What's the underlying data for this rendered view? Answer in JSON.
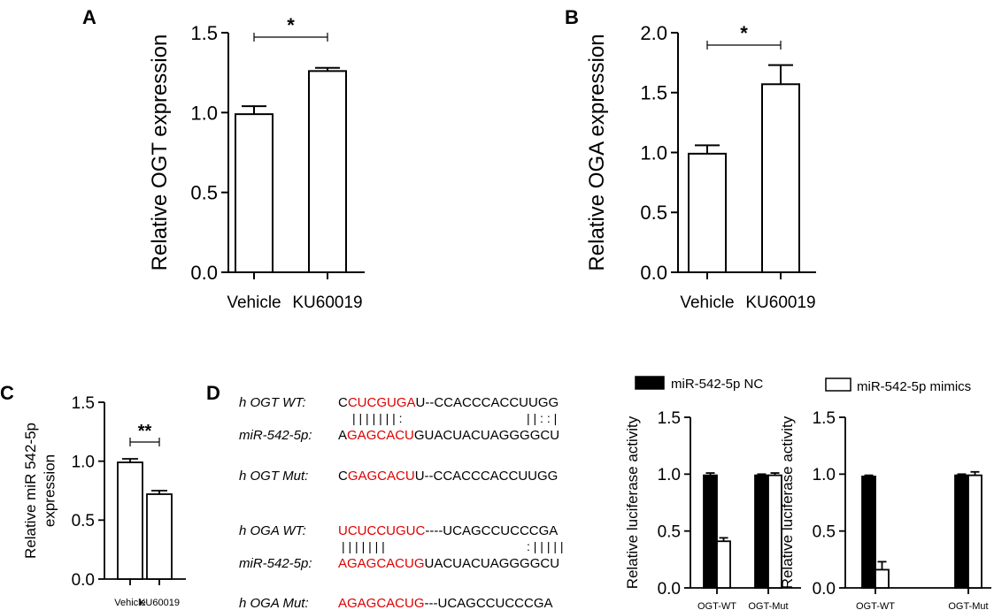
{
  "panels": {
    "a": {
      "letter": "A"
    },
    "b": {
      "letter": "B"
    },
    "c": {
      "letter": "C"
    },
    "d": {
      "letter": "D"
    }
  },
  "chart_data": [
    {
      "id": "A",
      "type": "bar",
      "categories": [
        "Vehicle",
        "KU60019"
      ],
      "values": [
        0.99,
        1.26
      ],
      "errors": [
        0.05,
        0.02
      ],
      "ylabel": "Relative OGT expression",
      "ylim": [
        0,
        1.5
      ],
      "yticks": [
        "0.0",
        "0.5",
        "1.0",
        "1.5"
      ],
      "significance": "*",
      "bar_fill": "#ffffff",
      "bar_stroke": "#000000"
    },
    {
      "id": "B",
      "type": "bar",
      "categories": [
        "Vehicle",
        "KU60019"
      ],
      "values": [
        0.99,
        1.57
      ],
      "errors": [
        0.07,
        0.16
      ],
      "ylabel": "Relative OGA expression",
      "ylim": [
        0,
        2.0
      ],
      "yticks": [
        "0.0",
        "0.5",
        "1.0",
        "1.5",
        "2.0"
      ],
      "significance": "*",
      "bar_fill": "#ffffff",
      "bar_stroke": "#000000"
    },
    {
      "id": "C",
      "type": "bar",
      "categories": [
        "Vehicle",
        "KU60019"
      ],
      "values": [
        0.99,
        0.72
      ],
      "errors": [
        0.03,
        0.03
      ],
      "ylabel": [
        "Relative miR 542-5p",
        "expression"
      ],
      "ylim": [
        0,
        1.5
      ],
      "yticks": [
        "0.0",
        "0.5",
        "1.0",
        "1.5"
      ],
      "significance": "**",
      "bar_fill": "#ffffff",
      "bar_stroke": "#000000"
    },
    {
      "id": "D1",
      "type": "bar",
      "categories": [
        "OGT-WT",
        "OGT-Mut"
      ],
      "series": [
        {
          "name": "miR-542-5p NC",
          "values": [
            0.99,
            0.99
          ],
          "errors": [
            0.02,
            0.01
          ],
          "color": "#000000"
        },
        {
          "name": "miR-542-5p mimics",
          "values": [
            0.41,
            0.99
          ],
          "errors": [
            0.03,
            0.02
          ],
          "color": "#ffffff"
        }
      ],
      "ylabel": "Relative luciferase activity",
      "ylim": [
        0,
        1.5
      ],
      "yticks": [
        "0.0",
        "0.5",
        "1.0",
        "1.5"
      ]
    },
    {
      "id": "D2",
      "type": "bar",
      "categories": [
        "OGT-WT",
        "OGT-Mut"
      ],
      "series": [
        {
          "name": "miR-542-5p NC",
          "values": [
            0.98,
            0.99
          ],
          "errors": [
            0.01,
            0.01
          ],
          "color": "#000000"
        },
        {
          "name": "miR-542-5p mimics",
          "values": [
            0.16,
            0.99
          ],
          "errors": [
            0.07,
            0.03
          ],
          "color": "#ffffff"
        }
      ],
      "ylabel": "Relative luciferase activity",
      "ylim": [
        0,
        1.5
      ],
      "yticks": [
        "0.0",
        "0.5",
        "1.0",
        "1.5"
      ]
    }
  ],
  "sequences": {
    "ogt_wt_label": "h OGT WT:",
    "ogt_wt_red": "CUCGUGA",
    "ogt_wt_pre": "C",
    "ogt_wt_rest": "U--CCACCCACCUUGG",
    "ogt_pairs1": "| | | | | | | :",
    "ogt_pairs2": "| |  : :  |",
    "mir_label": "miR-542-5p:",
    "mir_pre": "A",
    "mir_red": "GAGCACU",
    "mir_rest": "GUACUACUAGGGGCU",
    "ogt_mut_label": "h OGT Mut:",
    "ogt_mut_pre": "C",
    "ogt_mut_red": "GAGCACU",
    "ogt_mut_rest": "U--CCACCCACCUUGG",
    "oga_wt_label": "h OGA WT:",
    "oga_wt_red": "UCUCCUGUC",
    "oga_wt_rest": "----UCAGCCUCCCGA",
    "oga_pairs1": "| | | |    | |    |",
    "oga_pairs2": ": | | | | |",
    "mir2_label": "miR-542-5p:",
    "mir2_red": "AGAGCACUG",
    "mir2_rest": "UACUACUAGGGGCU",
    "oga_mut_label": "h OGA Mut:",
    "oga_mut_red": "AGAGCACUG",
    "oga_mut_rest": "---UCAGCCUCCCGA"
  }
}
